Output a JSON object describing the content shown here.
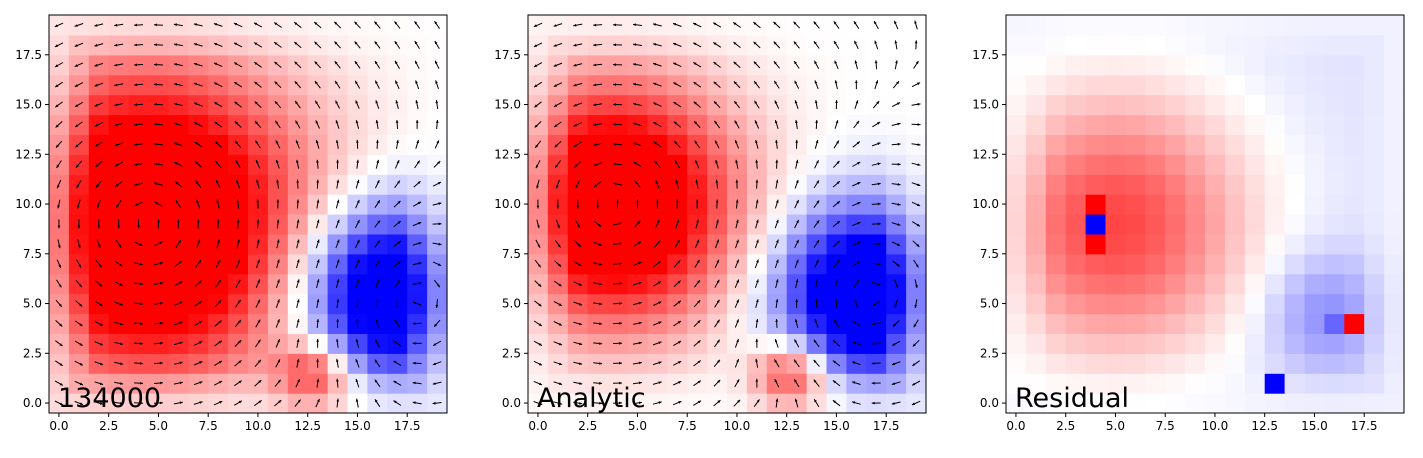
{
  "chart_data": [
    {
      "type": "heatmap",
      "overlay": "quiver",
      "colormap": "bwr",
      "corner_label": "134000",
      "grid_size": 20,
      "xlim": [
        -0.5,
        19.5
      ],
      "ylim": [
        -0.5,
        19.5
      ],
      "x_ticks": [
        0.0,
        2.5,
        5.0,
        7.5,
        10.0,
        12.5,
        15.0,
        17.5
      ],
      "y_ticks": [
        0.0,
        2.5,
        5.0,
        7.5,
        10.0,
        12.5,
        15.0,
        17.5
      ],
      "x_tick_labels": [
        "0.0",
        "2.5",
        "5.0",
        "7.5",
        "10.0",
        "12.5",
        "15.0",
        "17.5"
      ],
      "y_tick_labels": [
        "0.0",
        "2.5",
        "5.0",
        "7.5",
        "10.0",
        "12.5",
        "15.0",
        "17.5"
      ],
      "field": {
        "vortices": [
          {
            "cx": 4.5,
            "cy": 9.0,
            "radius": 6.5,
            "amplitude": 1.6
          },
          {
            "cx": 16.5,
            "cy": 5.5,
            "radius": 3.6,
            "amplitude": -1.5
          },
          {
            "cx": 12.8,
            "cy": 1.0,
            "radius": 1.6,
            "amplitude": 0.9
          }
        ]
      },
      "peak_cells": []
    },
    {
      "type": "heatmap",
      "overlay": "quiver",
      "colormap": "bwr",
      "corner_label": "Analytic",
      "grid_size": 20,
      "xlim": [
        -0.5,
        19.5
      ],
      "ylim": [
        -0.5,
        19.5
      ],
      "x_ticks": [
        0.0,
        2.5,
        5.0,
        7.5,
        10.0,
        12.5,
        15.0,
        17.5
      ],
      "y_ticks": [
        0.0,
        2.5,
        5.0,
        7.5,
        10.0,
        12.5,
        15.0,
        17.5
      ],
      "x_tick_labels": [
        "0.0",
        "2.5",
        "5.0",
        "7.5",
        "10.0",
        "12.5",
        "15.0",
        "17.5"
      ],
      "y_tick_labels": [
        "0.0",
        "2.5",
        "5.0",
        "7.5",
        "10.0",
        "12.5",
        "15.0",
        "17.5"
      ],
      "field": {
        "vortices": [
          {
            "cx": 3.8,
            "cy": 10.0,
            "radius": 5.0,
            "amplitude": 1.5
          },
          {
            "cx": 16.5,
            "cy": 5.5,
            "radius": 3.6,
            "amplitude": -1.5
          },
          {
            "cx": 12.7,
            "cy": 1.0,
            "radius": 1.6,
            "amplitude": 1.0
          }
        ]
      },
      "peak_cells": []
    },
    {
      "type": "heatmap",
      "overlay": "none",
      "colormap": "bwr",
      "corner_label": "Residual",
      "grid_size": 20,
      "xlim": [
        -0.5,
        19.5
      ],
      "ylim": [
        -0.5,
        19.5
      ],
      "x_ticks": [
        0.0,
        2.5,
        5.0,
        7.5,
        10.0,
        12.5,
        15.0,
        17.5
      ],
      "y_ticks": [
        0.0,
        2.5,
        5.0,
        7.5,
        10.0,
        12.5,
        15.0,
        17.5
      ],
      "x_tick_labels": [
        "0.0",
        "2.5",
        "5.0",
        "7.5",
        "10.0",
        "12.5",
        "15.0",
        "17.5"
      ],
      "y_tick_labels": [
        "0.0",
        "2.5",
        "5.0",
        "7.5",
        "10.0",
        "12.5",
        "15.0",
        "17.5"
      ],
      "field": {
        "baseline": -0.12,
        "vortices": [
          {
            "cx": 5.0,
            "cy": 9.0,
            "radius": 5.5,
            "amplitude": 0.85
          },
          {
            "cx": 15.5,
            "cy": 4.5,
            "radius": 2.5,
            "amplitude": -0.35
          }
        ]
      },
      "peak_cells": [
        {
          "x": 4,
          "y": 9,
          "value": -1.0
        },
        {
          "x": 4,
          "y": 8,
          "value": 1.0
        },
        {
          "x": 4,
          "y": 10,
          "value": 1.0
        },
        {
          "x": 17,
          "y": 4,
          "value": 1.0
        },
        {
          "x": 16,
          "y": 4,
          "value": -0.6
        },
        {
          "x": 13,
          "y": 1,
          "value": -1.0
        }
      ]
    }
  ]
}
